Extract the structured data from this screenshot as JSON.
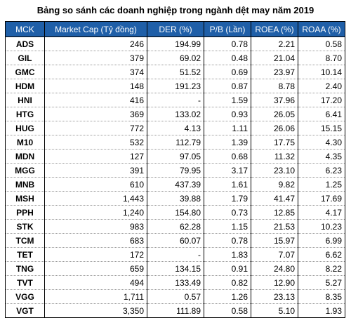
{
  "title": "Bảng so sánh các doanh nghiệp trong ngành dệt may năm 2019",
  "table": {
    "headers": [
      "MCK",
      "Market Cap (Tỷ đồng)",
      "DER (%)",
      "P/B (Lần)",
      "ROEA (%)",
      "ROAA (%)"
    ],
    "rows": [
      [
        "ADS",
        "246",
        "194.99",
        "0.78",
        "2.21",
        "0.58"
      ],
      [
        "GIL",
        "379",
        "69.02",
        "0.48",
        "21.04",
        "8.70"
      ],
      [
        "GMC",
        "374",
        "51.52",
        "0.69",
        "23.97",
        "10.14"
      ],
      [
        "HDM",
        "148",
        "191.23",
        "0.87",
        "8.78",
        "2.40"
      ],
      [
        "HNI",
        "416",
        "-",
        "1.59",
        "37.96",
        "17.20"
      ],
      [
        "HTG",
        "369",
        "133.02",
        "0.93",
        "26.05",
        "6.41"
      ],
      [
        "HUG",
        "772",
        "4.13",
        "1.11",
        "26.06",
        "15.15"
      ],
      [
        "M10",
        "532",
        "112.79",
        "1.39",
        "17.75",
        "4.30"
      ],
      [
        "MDN",
        "127",
        "97.05",
        "0.68",
        "11.32",
        "4.35"
      ],
      [
        "MGG",
        "391",
        "79.95",
        "3.17",
        "23.10",
        "6.23"
      ],
      [
        "MNB",
        "610",
        "437.39",
        "1.61",
        "9.82",
        "1.25"
      ],
      [
        "MSH",
        "1,443",
        "39.88",
        "1.79",
        "41.47",
        "17.69"
      ],
      [
        "PPH",
        "1,240",
        "154.80",
        "0.73",
        "12.85",
        "4.17"
      ],
      [
        "STK",
        "983",
        "62.28",
        "1.15",
        "21.53",
        "10.23"
      ],
      [
        "TCM",
        "683",
        "60.07",
        "0.78",
        "15.97",
        "6.99"
      ],
      [
        "TET",
        "172",
        "-",
        "1.83",
        "7.07",
        "6.62"
      ],
      [
        "TNG",
        "659",
        "134.15",
        "0.91",
        "24.80",
        "8.22"
      ],
      [
        "TVT",
        "494",
        "133.49",
        "0.82",
        "12.90",
        "5.27"
      ],
      [
        "VGG",
        "1,711",
        "0.57",
        "1.26",
        "23.13",
        "8.35"
      ],
      [
        "VGT",
        "3,350",
        "111.89",
        "0.58",
        "5.10",
        "1.93"
      ]
    ]
  },
  "colors": {
    "header_bg": "#1f5fa8",
    "header_text": "#ffffff"
  }
}
